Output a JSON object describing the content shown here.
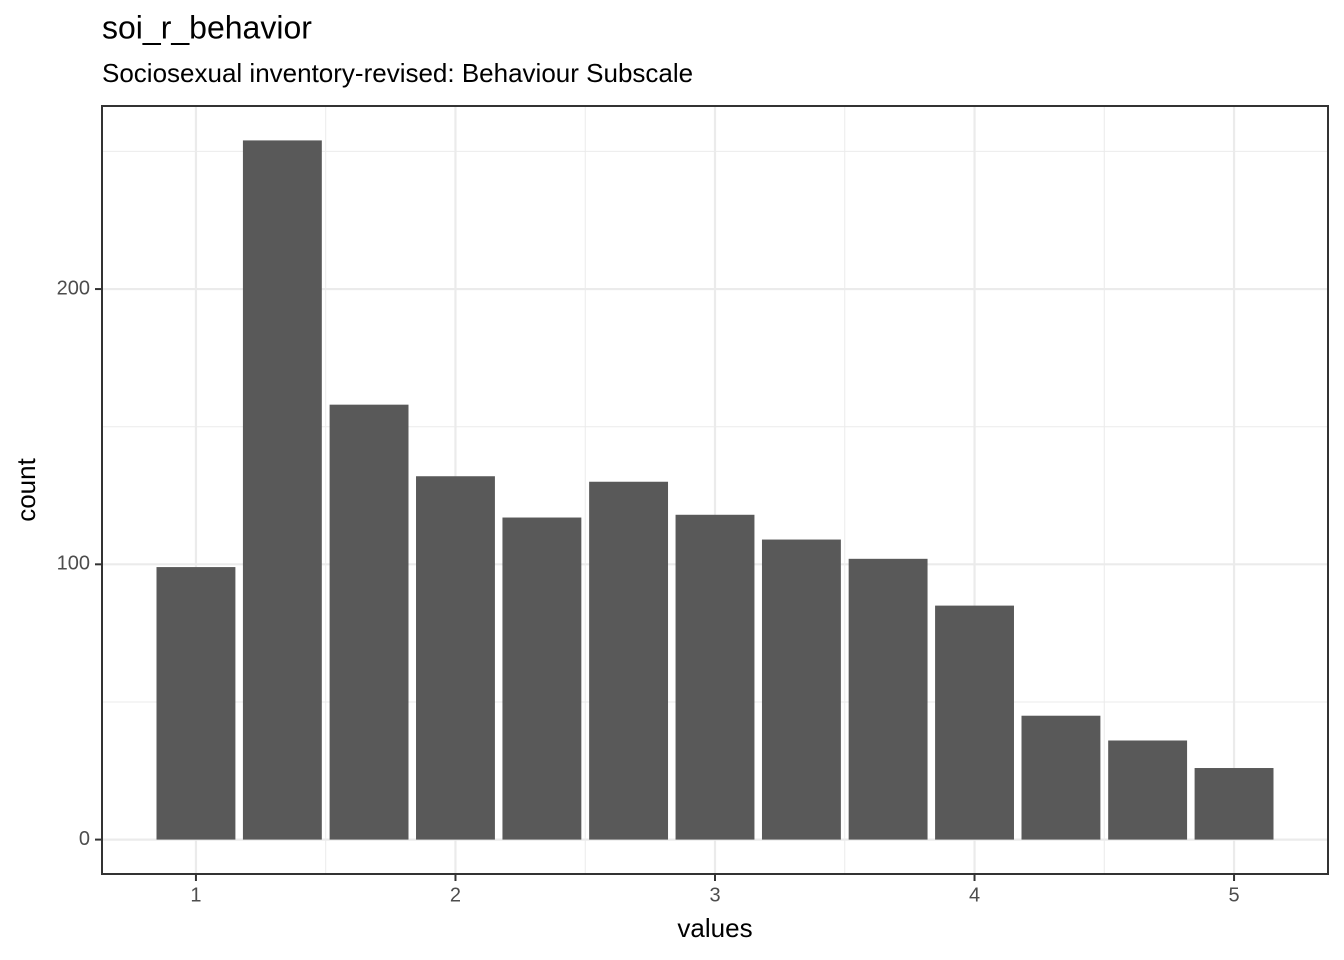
{
  "chart_data": {
    "type": "bar",
    "title": "soi_r_behavior",
    "subtitle": "Sociosexual inventory-revised: Behaviour Subscale",
    "x_label": "values",
    "y_label": "count",
    "x": [
      1,
      1.333,
      1.667,
      2,
      2.333,
      2.667,
      3,
      3.333,
      3.667,
      4,
      4.333,
      4.667,
      5
    ],
    "values": [
      99,
      254,
      158,
      132,
      117,
      130,
      118,
      109,
      102,
      85,
      45,
      36,
      26
    ],
    "color": "#595959",
    "xlim": [
      0.638,
      5.362
    ],
    "xticks": [
      1,
      2,
      3,
      4,
      5
    ],
    "ylim": [
      -12.5,
      266.5
    ],
    "yticks": [
      0,
      100,
      200
    ],
    "grid": true
  }
}
